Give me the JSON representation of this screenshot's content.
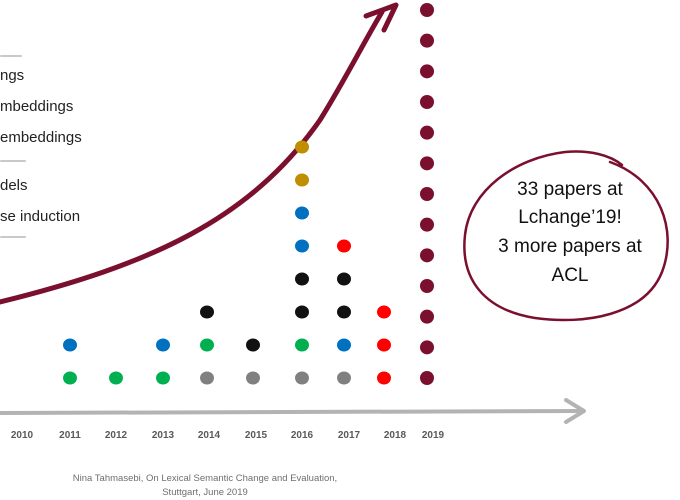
{
  "legend": {
    "items": [
      "ngs",
      "mbeddings",
      "embeddings",
      "dels",
      "se induction"
    ]
  },
  "timeline": {
    "years": [
      "2010",
      "2011",
      "2012",
      "2013",
      "2014",
      "2015",
      "2016",
      "2017",
      "2018",
      "2019"
    ],
    "counts": {
      "2011": [
        "green",
        "blue"
      ],
      "2012": [
        "green"
      ],
      "2013": [
        "green",
        "blue"
      ],
      "2014": [
        "gray",
        "green",
        "black"
      ],
      "2015": [
        "gray",
        "black"
      ],
      "2016": [
        "gray",
        "green",
        "black",
        "black",
        "blue",
        "blue",
        "gold",
        "gold"
      ],
      "2017": [
        "gray",
        "blue",
        "black",
        "black",
        "red"
      ],
      "2018": [
        "red",
        "red",
        "red"
      ],
      "2019_dot_count": 13
    }
  },
  "callout": {
    "line1": "33 papers at",
    "line2": "Lchange’19!",
    "line3": "3 more papers at",
    "line4": "ACL"
  },
  "footer": {
    "line1": "Nina Tahmasebi, On Lexical Semantic Change and Evaluation,",
    "line2": "Stuttgart, June 2019"
  },
  "colors": {
    "green": "#00b050",
    "blue": "#0070c0",
    "black": "#111111",
    "gray": "#808080",
    "red": "#ff0000",
    "gold": "#bf8f00",
    "maroon": "#7a0f2e",
    "axis": "#b3b3b3"
  }
}
